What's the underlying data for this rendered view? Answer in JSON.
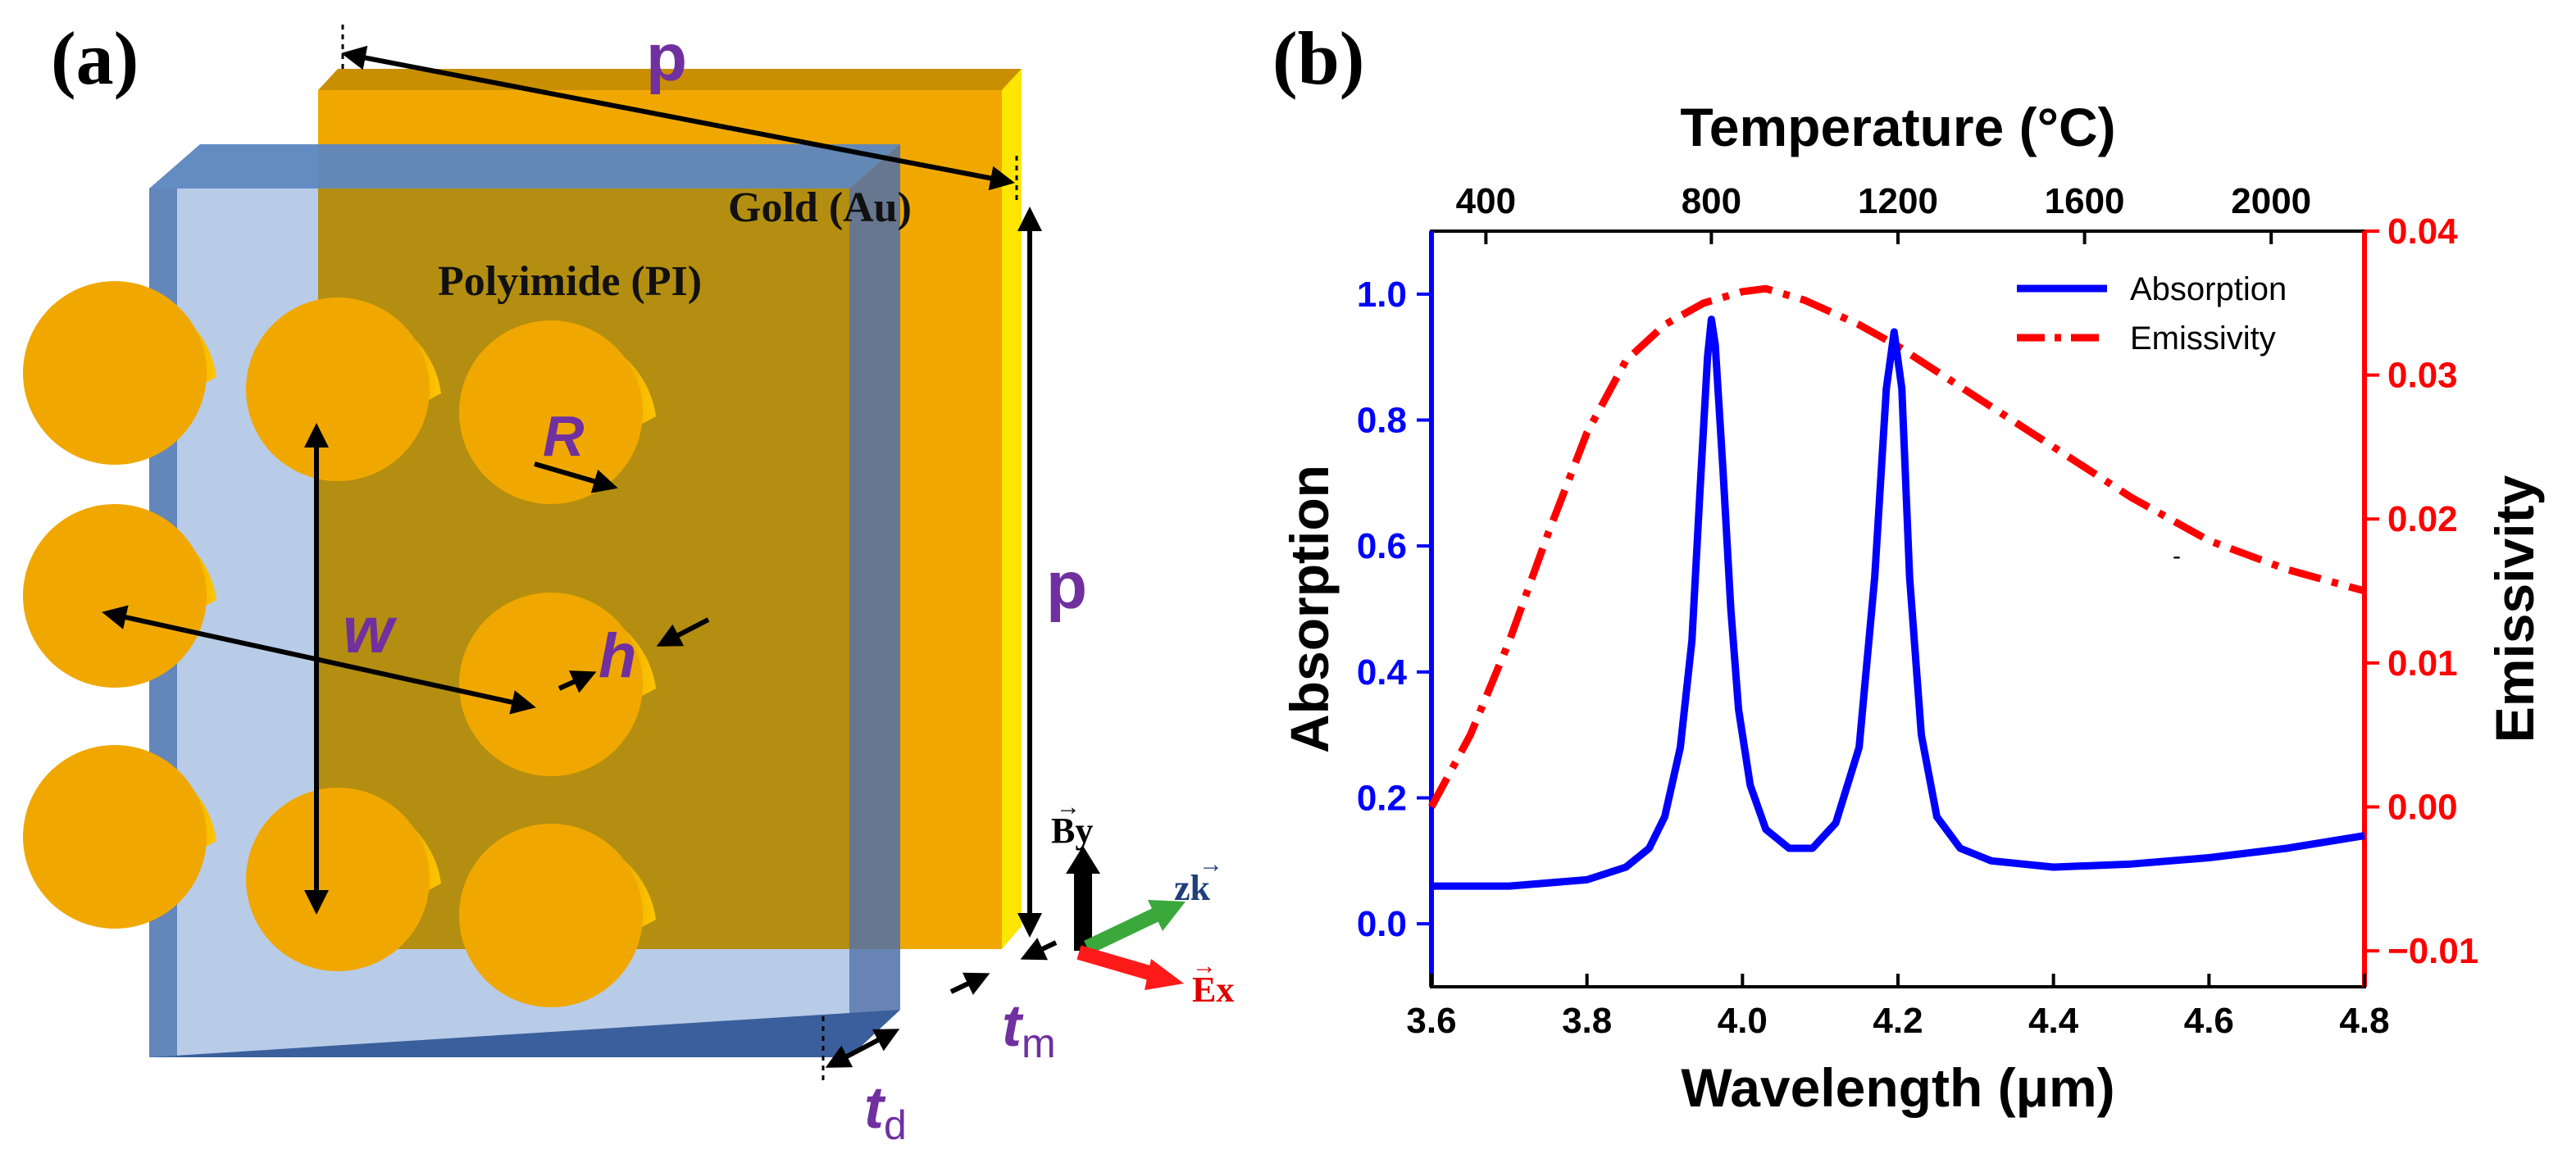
{
  "panel_a": {
    "label": "(a)",
    "gold_label": "Gold (Au)",
    "polyimide_label": "Polyimide (PI)",
    "dim_p_top": "p",
    "dim_p_right": "p",
    "dim_R": "R",
    "dim_w": "w",
    "dim_h": "h",
    "dim_tm": "t",
    "dim_tm_sub": "m",
    "dim_td": "t",
    "dim_td_sub": "d",
    "axis_By": "By",
    "axis_zk": "zk",
    "axis_Ex": "Ex",
    "colors": {
      "gold": "#f0a800",
      "gold_dark": "#b58a00",
      "yellow_edge": "#ffe600",
      "substrate": "#5b86c0",
      "dim_text": "#7030a0"
    }
  },
  "panel_b": {
    "label": "(b)",
    "legend": {
      "absorption": "Absorption",
      "emissivity": "Emissivity"
    }
  },
  "chart_data": {
    "type": "line",
    "title": "",
    "xlabel": "Wavelength (μm)",
    "xlim": [
      3.6,
      4.8
    ],
    "xticks": [
      "3.6",
      "3.8",
      "4.0",
      "4.2",
      "4.4",
      "4.6",
      "4.8"
    ],
    "x2label": "Temperature (°C)",
    "x2ticks": [
      {
        "label": "400",
        "at_wavelength": 3.67
      },
      {
        "label": "800",
        "at_wavelength": 3.96
      },
      {
        "label": "1200",
        "at_wavelength": 4.2
      },
      {
        "label": "1600",
        "at_wavelength": 4.44
      },
      {
        "label": "2000",
        "at_wavelength": 4.68
      }
    ],
    "ylabel": "Absorption",
    "ylim": [
      -0.1,
      1.1
    ],
    "yticks": [
      "0.0",
      "0.2",
      "0.4",
      "0.6",
      "0.8",
      "1.0"
    ],
    "y2label": "Emissivity",
    "y2lim": [
      -0.0125,
      0.04
    ],
    "y2ticks": [
      "−0.01",
      "0.00",
      "0.01",
      "0.02",
      "0.03",
      "0.04"
    ],
    "legend_position": "top-right",
    "series": [
      {
        "name": "Absorption",
        "axis": "left",
        "color": "#0000ff",
        "style": "solid",
        "points": [
          [
            3.6,
            0.06
          ],
          [
            3.7,
            0.06
          ],
          [
            3.8,
            0.07
          ],
          [
            3.85,
            0.09
          ],
          [
            3.88,
            0.12
          ],
          [
            3.9,
            0.17
          ],
          [
            3.92,
            0.28
          ],
          [
            3.935,
            0.45
          ],
          [
            3.945,
            0.68
          ],
          [
            3.955,
            0.9
          ],
          [
            3.96,
            0.96
          ],
          [
            3.965,
            0.92
          ],
          [
            3.975,
            0.72
          ],
          [
            3.985,
            0.5
          ],
          [
            3.995,
            0.34
          ],
          [
            4.01,
            0.22
          ],
          [
            4.03,
            0.15
          ],
          [
            4.06,
            0.12
          ],
          [
            4.09,
            0.12
          ],
          [
            4.12,
            0.16
          ],
          [
            4.15,
            0.28
          ],
          [
            4.17,
            0.55
          ],
          [
            4.185,
            0.85
          ],
          [
            4.195,
            0.94
          ],
          [
            4.205,
            0.85
          ],
          [
            4.215,
            0.55
          ],
          [
            4.23,
            0.3
          ],
          [
            4.25,
            0.17
          ],
          [
            4.28,
            0.12
          ],
          [
            4.32,
            0.1
          ],
          [
            4.4,
            0.09
          ],
          [
            4.5,
            0.095
          ],
          [
            4.6,
            0.105
          ],
          [
            4.7,
            0.12
          ],
          [
            4.8,
            0.14
          ]
        ]
      },
      {
        "name": "Emissivity",
        "axis": "right",
        "color": "#ff0000",
        "style": "dash-dot",
        "points": [
          [
            3.6,
            0.0
          ],
          [
            3.65,
            0.005
          ],
          [
            3.7,
            0.0115
          ],
          [
            3.75,
            0.019
          ],
          [
            3.8,
            0.026
          ],
          [
            3.85,
            0.031
          ],
          [
            3.9,
            0.0335
          ],
          [
            3.95,
            0.035
          ],
          [
            4.0,
            0.0358
          ],
          [
            4.03,
            0.036
          ],
          [
            4.08,
            0.0352
          ],
          [
            4.15,
            0.0335
          ],
          [
            4.2,
            0.032
          ],
          [
            4.3,
            0.0285
          ],
          [
            4.4,
            0.025
          ],
          [
            4.5,
            0.0215
          ],
          [
            4.6,
            0.0185
          ],
          [
            4.7,
            0.0165
          ],
          [
            4.8,
            0.015
          ]
        ]
      }
    ]
  }
}
